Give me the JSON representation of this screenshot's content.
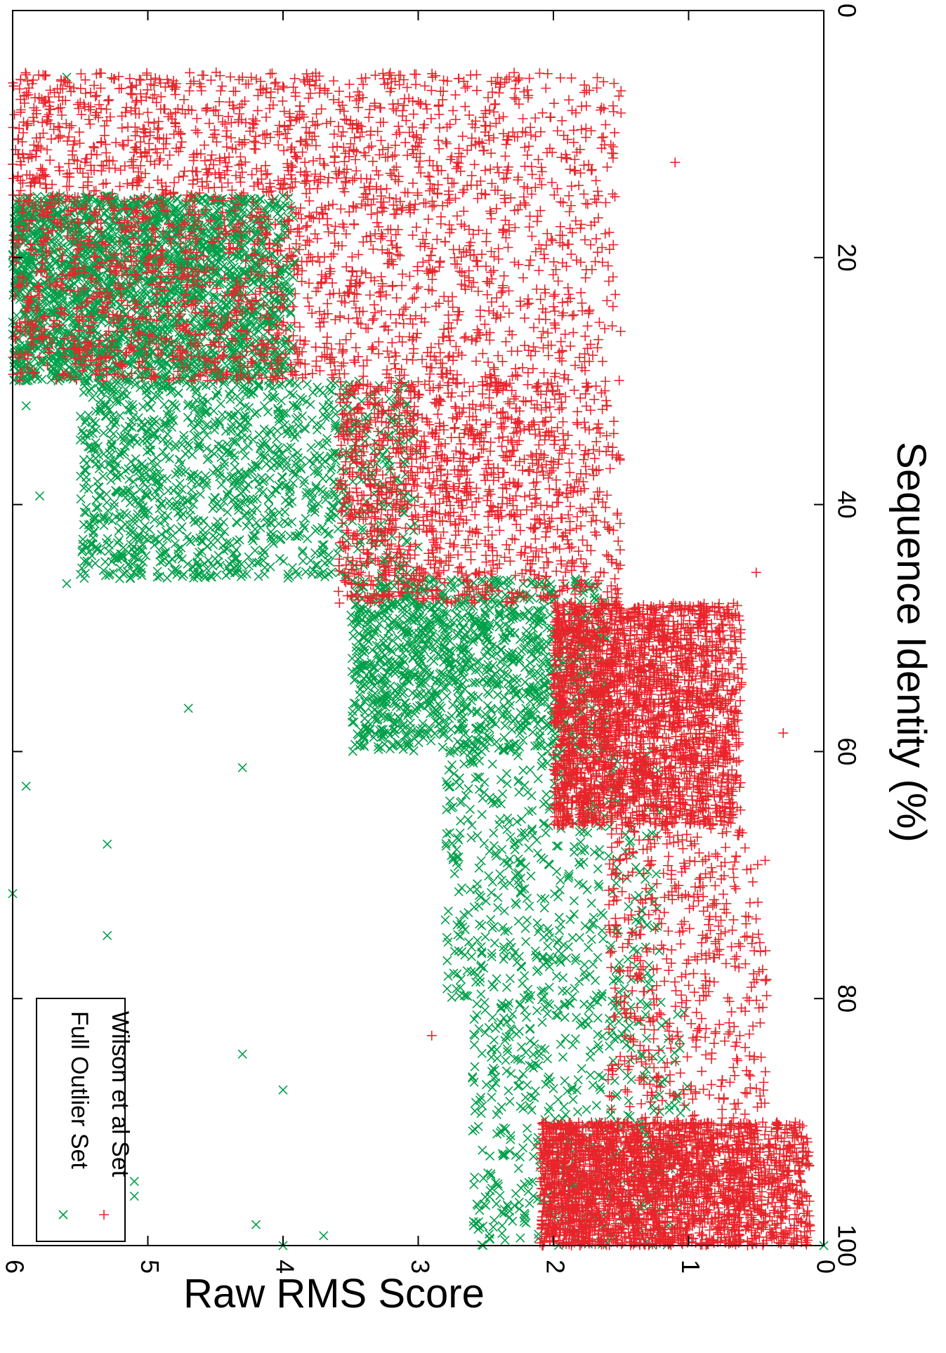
{
  "chart_data": {
    "type": "scatter",
    "orientation": "rotated-90-clockwise",
    "xlabel": "Sequence Identity (%)",
    "ylabel": "Raw RMS Score",
    "xlim": [
      0,
      100
    ],
    "ylim": [
      0,
      6
    ],
    "x_ticks": [
      "0",
      "20",
      "40",
      "60",
      "80",
      "100"
    ],
    "y_ticks": [
      "0",
      "1",
      "2",
      "3",
      "4",
      "5",
      "6"
    ],
    "grid": false,
    "legend_placement": "bottom-left",
    "series": [
      {
        "name": "Full Outlier Set",
        "marker": "x",
        "color": "#00a04a",
        "clusters": [
          {
            "x": [
              15,
              30
            ],
            "y": [
              3.9,
              6.0
            ],
            "density": "very high"
          },
          {
            "x": [
              30,
              46
            ],
            "y": [
              3.0,
              5.5
            ],
            "density": "high"
          },
          {
            "x": [
              46,
              60
            ],
            "y": [
              1.6,
              3.5
            ],
            "density": "high"
          },
          {
            "x": [
              60,
              80
            ],
            "y": [
              1.2,
              2.8
            ],
            "density": "medium"
          },
          {
            "x": [
              80,
              100
            ],
            "y": [
              1.0,
              2.6
            ],
            "density": "medium"
          }
        ],
        "points": [
          {
            "x": 5.4,
            "y": 5.6
          },
          {
            "x": 32.0,
            "y": 5.9
          },
          {
            "x": 39.3,
            "y": 5.8
          },
          {
            "x": 46.4,
            "y": 5.6
          },
          {
            "x": 56.5,
            "y": 4.7
          },
          {
            "x": 61.3,
            "y": 4.3
          },
          {
            "x": 62.8,
            "y": 5.9
          },
          {
            "x": 67.5,
            "y": 5.3
          },
          {
            "x": 71.5,
            "y": 6.0
          },
          {
            "x": 74.9,
            "y": 5.3
          },
          {
            "x": 84.5,
            "y": 4.3
          },
          {
            "x": 87.4,
            "y": 4.0
          },
          {
            "x": 94.8,
            "y": 5.1
          },
          {
            "x": 96.0,
            "y": 5.1
          },
          {
            "x": 98.3,
            "y": 4.2
          },
          {
            "x": 99.2,
            "y": 3.7
          },
          {
            "x": 100.0,
            "y": 4.0
          },
          {
            "x": 100.0,
            "y": 0.0
          }
        ]
      },
      {
        "name": "Wilson et al Set",
        "marker": "+",
        "color": "#e8252b",
        "clusters": [
          {
            "x": [
              5,
              30
            ],
            "y": [
              1.5,
              6.0
            ],
            "density": "very high"
          },
          {
            "x": [
              30,
              48
            ],
            "y": [
              1.5,
              3.6
            ],
            "density": "high"
          },
          {
            "x": [
              48,
              66
            ],
            "y": [
              0.6,
              2.0
            ],
            "density": "very high"
          },
          {
            "x": [
              66,
              90
            ],
            "y": [
              0.4,
              1.6
            ],
            "density": "medium"
          },
          {
            "x": [
              90,
              100
            ],
            "y": [
              0.1,
              2.1
            ],
            "density": "very high"
          }
        ],
        "points": [
          {
            "x": 5.2,
            "y": 5.9
          },
          {
            "x": 5.4,
            "y": 4.3
          },
          {
            "x": 6.5,
            "y": 1.5
          },
          {
            "x": 8.3,
            "y": 1.5
          },
          {
            "x": 12.3,
            "y": 1.1
          },
          {
            "x": 45.5,
            "y": 0.5
          },
          {
            "x": 58.5,
            "y": 0.3
          },
          {
            "x": 83.0,
            "y": 2.9
          },
          {
            "x": 98.8,
            "y": 0.1
          }
        ]
      }
    ]
  }
}
